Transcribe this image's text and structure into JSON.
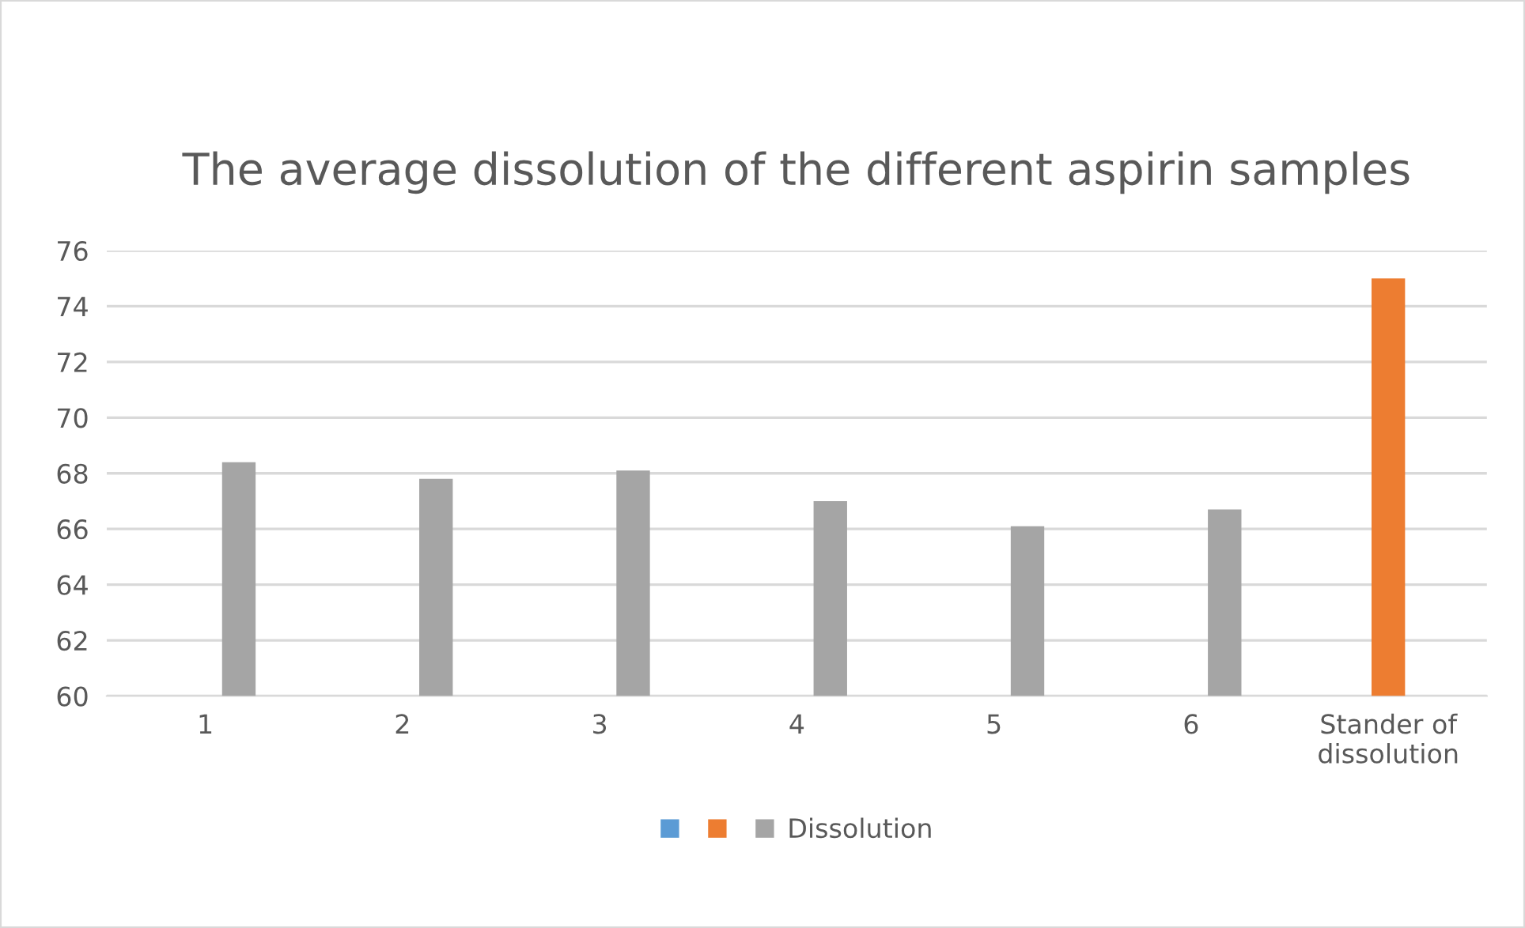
{
  "chart_data": {
    "type": "bar",
    "title": "The average dissolution of the different aspirin samples",
    "categories": [
      "1",
      "2",
      "3",
      "4",
      "5",
      "6",
      "Stander of\ndissolution"
    ],
    "series": [
      {
        "color": "#5b9bd5",
        "values": [
          null,
          null,
          null,
          null,
          null,
          null,
          null
        ]
      },
      {
        "color": "#ed7d31",
        "values": [
          null,
          null,
          null,
          null,
          null,
          null,
          75.0
        ]
      },
      {
        "name": "Dissolution",
        "color": "#a5a5a5",
        "values": [
          68.4,
          67.8,
          68.1,
          67.0,
          66.1,
          66.7,
          null
        ]
      }
    ],
    "ylim": [
      60,
      76
    ],
    "yticks": [
      60,
      62,
      64,
      66,
      68,
      70,
      72,
      74,
      76
    ],
    "grid": "y",
    "legend": "bottom"
  }
}
